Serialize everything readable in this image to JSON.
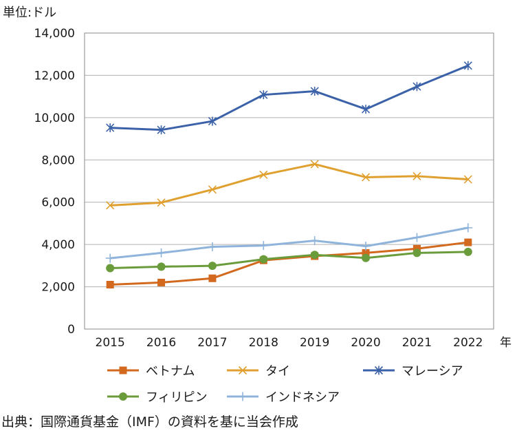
{
  "chart_data": {
    "type": "line",
    "unit_label": "単位:ドル",
    "x_unit": "年",
    "categories": [
      "2015",
      "2016",
      "2017",
      "2018",
      "2019",
      "2020",
      "2021",
      "2022"
    ],
    "ylim": [
      0,
      14000
    ],
    "yticks": [
      0,
      2000,
      4000,
      6000,
      8000,
      10000,
      12000,
      14000
    ],
    "ytick_labels": [
      "0",
      "2,000",
      "4,000",
      "6,000",
      "8,000",
      "10,000",
      "12,000",
      "14,000"
    ],
    "grid": true,
    "legend_position": "bottom",
    "series": [
      {
        "name": "ベトナム",
        "color": "#D2691E",
        "marker": "square",
        "values": [
          2100,
          2200,
          2400,
          3250,
          3450,
          3600,
          3800,
          4100
        ]
      },
      {
        "name": "タイ",
        "color": "#E0A030",
        "marker": "x",
        "values": [
          5850,
          5980,
          6600,
          7300,
          7800,
          7180,
          7230,
          7080
        ]
      },
      {
        "name": "マレーシア",
        "color": "#3B62A8",
        "marker": "star",
        "values": [
          9520,
          9420,
          9830,
          11080,
          11250,
          10400,
          11470,
          12460
        ]
      },
      {
        "name": "フィリピン",
        "color": "#6A9C3C",
        "marker": "circle",
        "values": [
          2880,
          2950,
          2990,
          3300,
          3510,
          3360,
          3600,
          3650
        ]
      },
      {
        "name": "インドネシア",
        "color": "#8FB4DB",
        "marker": "plus",
        "values": [
          3350,
          3600,
          3890,
          3950,
          4180,
          3920,
          4330,
          4790
        ]
      }
    ]
  },
  "source": "出典：国際通貨基金（IMF）の資料を基に当会作成"
}
